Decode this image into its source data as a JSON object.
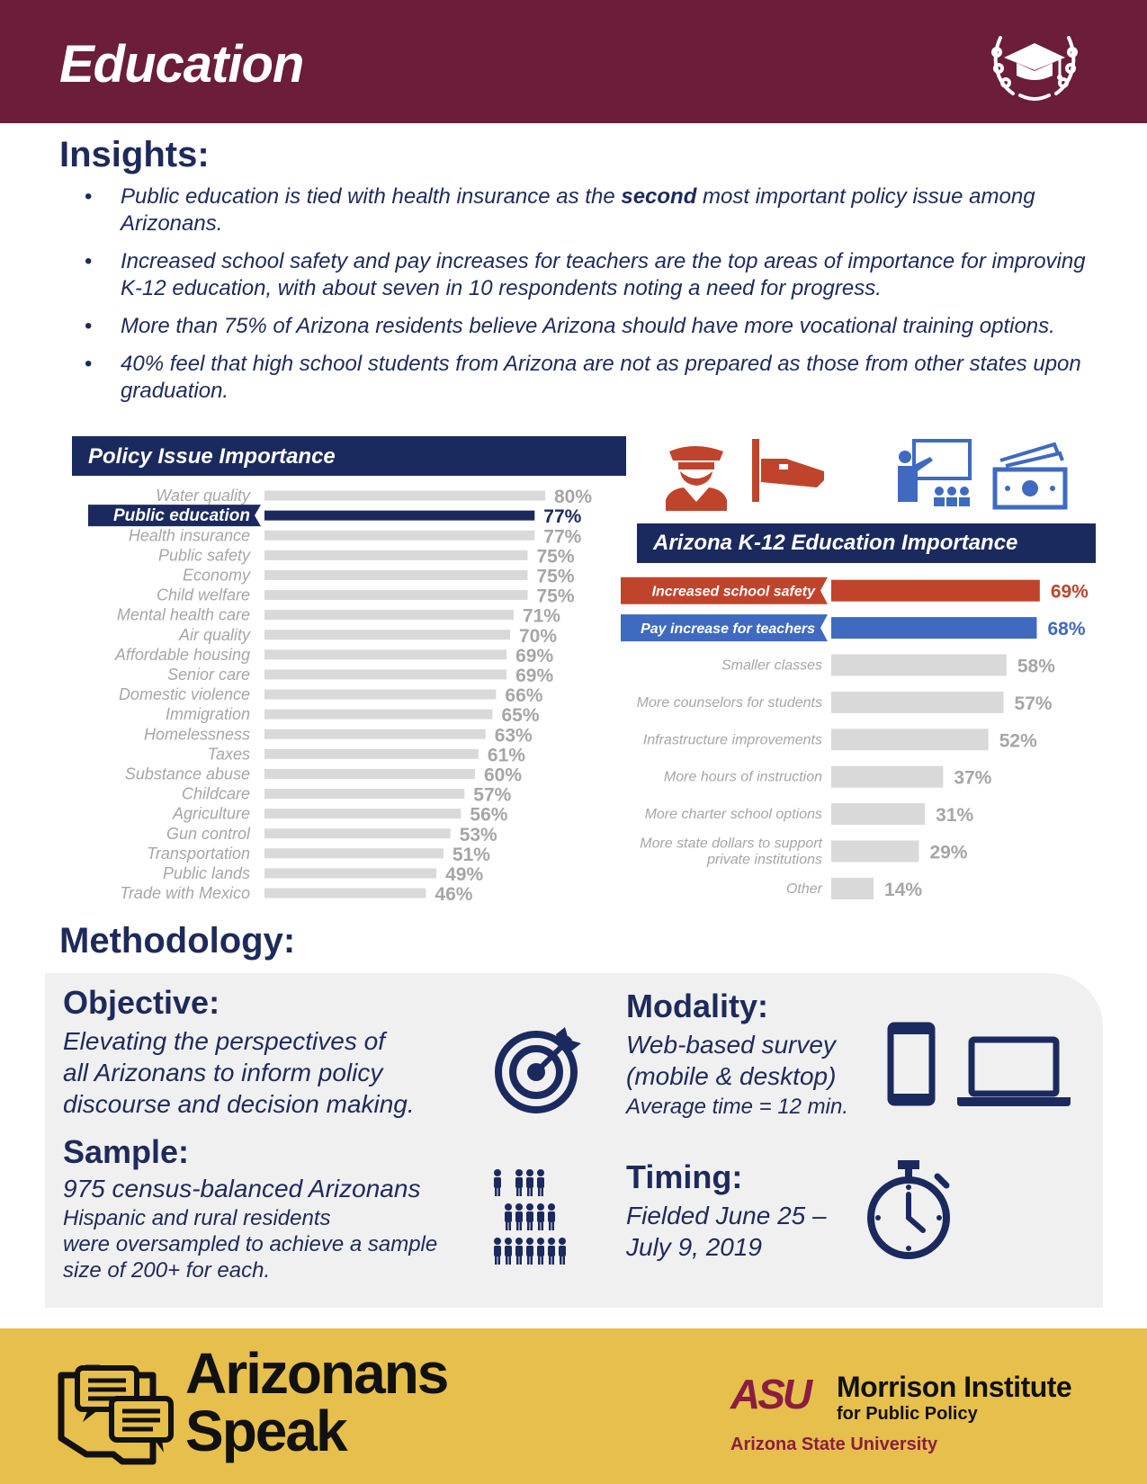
{
  "header": {
    "title": "Education",
    "icon": "graduation-cap-wreath-icon"
  },
  "insights": {
    "title": "Insights:",
    "items": [
      {
        "before": "Public education is tied with health insurance as the ",
        "bold": "second",
        "after": " most important policy issue among Arizonans."
      },
      {
        "before": "Increased school safety and pay increases for teachers are the top areas of importance for improving K-12 education, with about seven in 10 respondents noting a need for progress.",
        "bold": "",
        "after": ""
      },
      {
        "before": "More than 75% of Arizona residents believe Arizona should have more vocational training options.",
        "bold": "",
        "after": ""
      },
      {
        "before": "40% feel that high school students from Arizona are not as prepared as those from other states upon graduation.",
        "bold": "",
        "after": ""
      }
    ]
  },
  "chart_data": [
    {
      "type": "bar",
      "orientation": "horizontal",
      "title": "Policy Issue Importance",
      "unit": "%",
      "xlim": [
        0,
        100
      ],
      "highlight": "Public education",
      "colors": {
        "default": "#d9d9d9",
        "highlight": "#1b2a5e",
        "label": "#a6a6a6"
      },
      "categories": [
        "Water quality",
        "Public education",
        "Health insurance",
        "Public safety",
        "Economy",
        "Child welfare",
        "Mental health care",
        "Air quality",
        "Affordable housing",
        "Senior care",
        "Domestic violence",
        "Immigration",
        "Homelessness",
        "Taxes",
        "Substance abuse",
        "Childcare",
        "Agriculture",
        "Gun control",
        "Transportation",
        "Public lands",
        "Trade with Mexico"
      ],
      "values": [
        80,
        77,
        77,
        75,
        75,
        75,
        71,
        70,
        69,
        69,
        66,
        65,
        63,
        61,
        60,
        57,
        56,
        53,
        51,
        49,
        46
      ]
    },
    {
      "type": "bar",
      "orientation": "horizontal",
      "title": "Arizona K-12 Education Importance",
      "unit": "%",
      "xlim": [
        0,
        100
      ],
      "colors": {
        "default": "#d9d9d9",
        "label": "#a6a6a6",
        "Increased school safety": "#c0442b",
        "Pay increase for teachers": "#3f6abf"
      },
      "categories": [
        "Increased school safety",
        "Pay increase for teachers",
        "Smaller classes",
        "More counselors for students",
        "Infrastructure improvements",
        "More hours of instruction",
        "More charter school options",
        "More state dollars to support private institutions",
        "Other"
      ],
      "category_lines": [
        [
          "Increased school safety"
        ],
        [
          "Pay increase for teachers"
        ],
        [
          "Smaller classes"
        ],
        [
          "More counselors for students"
        ],
        [
          "Infrastructure improvements"
        ],
        [
          "More hours of instruction"
        ],
        [
          "More charter school options"
        ],
        [
          "More state dollars to support",
          "private institutions"
        ],
        [
          "Other"
        ]
      ],
      "values": [
        69,
        68,
        58,
        57,
        52,
        37,
        31,
        29,
        14
      ],
      "icons": [
        "police-officer-icon",
        "security-camera-icon",
        "teacher-classroom-icon",
        "money-bills-icon"
      ]
    }
  ],
  "methodology": {
    "title": "Methodology:",
    "objective": {
      "heading": "Objective:",
      "lines": [
        "Elevating the perspectives of",
        "all Arizonans to inform policy",
        "discourse and decision making."
      ],
      "icon": "target-arrow-icon"
    },
    "sample": {
      "heading": "Sample:",
      "main": "975 census-balanced Arizonans",
      "lines": [
        "Hispanic and rural residents",
        "were oversampled to achieve a sample",
        "size of 200+ for each."
      ],
      "icon": "people-group-icon"
    },
    "modality": {
      "heading": "Modality:",
      "lines": [
        "Web-based survey",
        "(mobile & desktop)"
      ],
      "note": "Average time = 12 min.",
      "icons": [
        "mobile-phone-icon",
        "laptop-icon"
      ]
    },
    "timing": {
      "heading": "Timing:",
      "lines": [
        "Fielded June 25 –",
        "July 9, 2019"
      ],
      "icon": "stopwatch-icon"
    }
  },
  "footer": {
    "brand_line1": "Arizonans",
    "brand_line2": "Speak",
    "brand_icon": "arizona-speech-bubbles-icon",
    "asu": "ASU",
    "institute": "Morrison Institute",
    "institute_sub": "for Public Policy",
    "university": "Arizona State University",
    "colors": {
      "footer_bg": "#e6bf4c",
      "asu_maroon": "#8c1d40"
    }
  }
}
